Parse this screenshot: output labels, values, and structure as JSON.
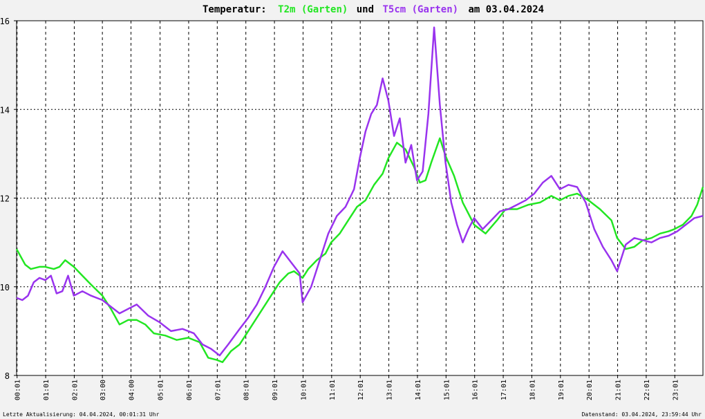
{
  "chart_data": {
    "type": "line",
    "title_prefix": "Temperatur:",
    "title_series1": "T2m (Garten)",
    "title_join": "und",
    "title_series2": "T5cm (Garten)",
    "title_date": "am 03.04.2024",
    "ylim": [
      8,
      16
    ],
    "yticks": [
      "8",
      "10",
      "12",
      "14",
      "16"
    ],
    "xlim": [
      0,
      24
    ],
    "xticks": [
      "00:01",
      "01:01",
      "02:01",
      "03:00",
      "04:00",
      "05:01",
      "06:01",
      "07:01",
      "08:01",
      "09:01",
      "10:01",
      "11:01",
      "12:01",
      "13:01",
      "14:01",
      "15:01",
      "16:01",
      "17:01",
      "18:01",
      "19:01",
      "20:01",
      "21:01",
      "22:01",
      "23:01"
    ],
    "xtick_hours": [
      0.017,
      1.017,
      2.017,
      3.0,
      4.0,
      5.017,
      6.017,
      7.017,
      8.017,
      9.017,
      10.017,
      11.017,
      12.017,
      13.017,
      14.017,
      15.017,
      16.017,
      17.017,
      18.017,
      19.017,
      20.017,
      21.017,
      22.017,
      23.017
    ],
    "grid": true,
    "series": [
      {
        "color": "#22e622",
        "x": [
          0,
          0.3,
          0.5,
          0.8,
          1.0,
          1.3,
          1.5,
          1.7,
          2.0,
          2.3,
          2.6,
          3.0,
          3.3,
          3.6,
          3.9,
          4.2,
          4.5,
          4.8,
          5.2,
          5.6,
          6.0,
          6.4,
          6.7,
          7.0,
          7.2,
          7.5,
          7.8,
          8.0,
          8.3,
          8.6,
          8.9,
          9.2,
          9.5,
          9.7,
          10.0,
          10.2,
          10.5,
          10.8,
          11.0,
          11.3,
          11.6,
          11.9,
          12.2,
          12.5,
          12.8,
          13.0,
          13.3,
          13.6,
          13.9,
          14.1,
          14.3,
          14.5,
          14.8,
          15.0,
          15.3,
          15.6,
          16.0,
          16.4,
          16.8,
          17.1,
          17.5,
          17.9,
          18.3,
          18.7,
          19.0,
          19.3,
          19.6,
          20.0,
          20.4,
          20.8,
          21.0,
          21.3,
          21.6,
          21.9,
          22.2,
          22.5,
          22.8,
          23.0,
          23.3,
          23.6,
          23.8,
          24.0
        ],
        "y": [
          10.85,
          10.5,
          10.4,
          10.45,
          10.45,
          10.4,
          10.45,
          10.6,
          10.45,
          10.25,
          10.05,
          9.8,
          9.5,
          9.15,
          9.25,
          9.25,
          9.15,
          8.95,
          8.9,
          8.8,
          8.85,
          8.75,
          8.4,
          8.35,
          8.3,
          8.55,
          8.7,
          8.9,
          9.2,
          9.5,
          9.8,
          10.1,
          10.3,
          10.35,
          10.2,
          10.4,
          10.6,
          10.75,
          11.0,
          11.2,
          11.5,
          11.8,
          11.95,
          12.3,
          12.55,
          12.9,
          13.25,
          13.1,
          12.7,
          12.35,
          12.4,
          12.8,
          13.35,
          12.95,
          12.5,
          11.9,
          11.4,
          11.2,
          11.5,
          11.75,
          11.75,
          11.85,
          11.9,
          12.05,
          11.95,
          12.05,
          12.1,
          11.95,
          11.75,
          11.5,
          11.1,
          10.85,
          10.9,
          11.05,
          11.1,
          11.2,
          11.25,
          11.3,
          11.4,
          11.6,
          11.85,
          12.25
        ]
      },
      {
        "color": "#9933ee",
        "x": [
          0,
          0.2,
          0.4,
          0.6,
          0.8,
          1.0,
          1.2,
          1.4,
          1.6,
          1.8,
          2.0,
          2.3,
          2.6,
          3.0,
          3.3,
          3.6,
          3.9,
          4.2,
          4.6,
          5.0,
          5.4,
          5.8,
          6.2,
          6.5,
          6.8,
          7.1,
          7.4,
          7.8,
          8.1,
          8.4,
          8.7,
          9.0,
          9.3,
          9.6,
          9.9,
          10.0,
          10.3,
          10.6,
          10.9,
          11.2,
          11.5,
          11.8,
          12.0,
          12.2,
          12.4,
          12.6,
          12.8,
          13.0,
          13.2,
          13.4,
          13.6,
          13.8,
          14.0,
          14.2,
          14.4,
          14.6,
          14.8,
          15.0,
          15.2,
          15.4,
          15.6,
          15.8,
          16.0,
          16.3,
          16.6,
          16.9,
          17.2,
          17.5,
          17.8,
          18.1,
          18.4,
          18.7,
          19.0,
          19.3,
          19.6,
          19.9,
          20.2,
          20.5,
          20.8,
          21.0,
          21.3,
          21.6,
          21.9,
          22.2,
          22.5,
          22.8,
          23.1,
          23.4,
          23.7,
          24.0
        ],
        "y": [
          9.75,
          9.7,
          9.8,
          10.1,
          10.2,
          10.15,
          10.25,
          9.85,
          9.9,
          10.25,
          9.8,
          9.9,
          9.8,
          9.7,
          9.55,
          9.4,
          9.5,
          9.6,
          9.35,
          9.2,
          9.0,
          9.05,
          8.95,
          8.7,
          8.6,
          8.45,
          8.7,
          9.05,
          9.3,
          9.6,
          10.0,
          10.45,
          10.8,
          10.55,
          10.3,
          9.65,
          10.0,
          10.6,
          11.2,
          11.6,
          11.8,
          12.2,
          12.9,
          13.5,
          13.9,
          14.1,
          14.7,
          14.2,
          13.4,
          13.8,
          12.8,
          13.2,
          12.4,
          12.6,
          13.9,
          15.85,
          14.1,
          12.8,
          11.9,
          11.4,
          11.0,
          11.3,
          11.55,
          11.3,
          11.5,
          11.7,
          11.75,
          11.85,
          11.95,
          12.1,
          12.35,
          12.5,
          12.2,
          12.3,
          12.25,
          11.9,
          11.3,
          10.9,
          10.6,
          10.35,
          10.95,
          11.1,
          11.05,
          11.0,
          11.1,
          11.15,
          11.25,
          11.4,
          11.55,
          11.6
        ]
      }
    ]
  },
  "footer": {
    "left": "Letzte Aktualisierung: 04.04.2024, 00:01:31 Uhr",
    "right": "Datenstand: 03.04.2024, 23:59:44 Uhr"
  },
  "colors": {
    "t2m": "#22e622",
    "t5cm": "#9933ee",
    "background": "#f2f2f2",
    "plot_background": "#ffffff"
  }
}
